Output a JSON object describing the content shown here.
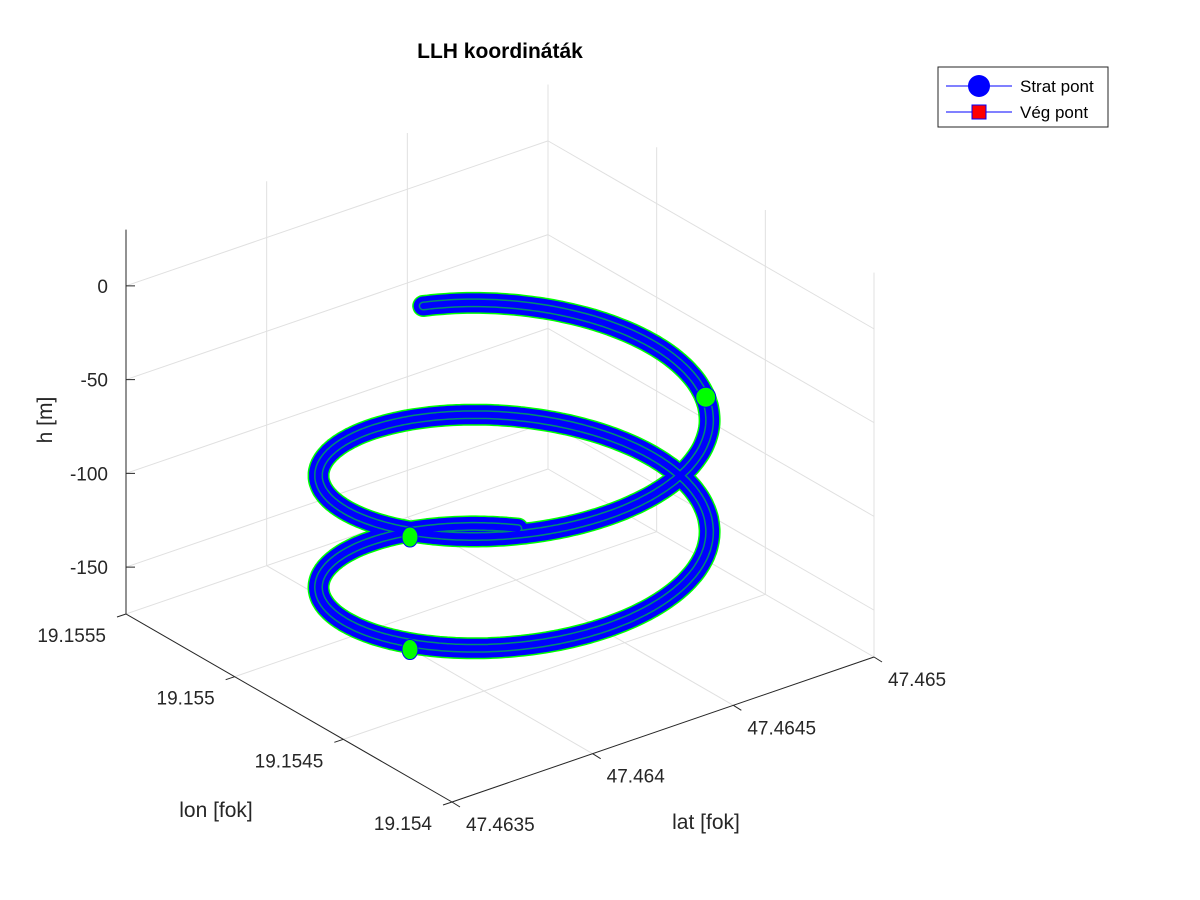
{
  "chart_data": {
    "type": "line",
    "title": "LLH koordináták",
    "xlabel": "lat [fok]",
    "ylabel": "lon [fok]",
    "zlabel": "h [m]",
    "xlim": [
      47.4635,
      47.465
    ],
    "ylim": [
      19.154,
      19.1555
    ],
    "zlim": [
      -175,
      30
    ],
    "x_ticks": [
      "47.4635",
      "47.464",
      "47.4645",
      "47.465"
    ],
    "y_ticks": [
      "19.154",
      "19.1545",
      "19.155",
      "19.1555"
    ],
    "z_ticks": [
      "-150",
      "-100",
      "-50",
      "0"
    ],
    "grid": true,
    "view": "3d",
    "series": [
      {
        "label_key": "helix",
        "kind": "helix",
        "center_lat": 47.4643,
        "center_lon": 19.15475,
        "radius_deg": 0.00055,
        "h_start": -43,
        "h_end": -167,
        "turns": 2.08,
        "start_angle_deg": 80,
        "color_main": "#0000ff",
        "color_edge": "#00ff00"
      }
    ],
    "markers": [
      {
        "lat": 47.46468,
        "lon": 19.15436,
        "h": -44,
        "color": "#00ff00"
      },
      {
        "lat": 47.46393,
        "lon": 19.15475,
        "h": -106,
        "color": "#00ff00"
      },
      {
        "lat": 47.46393,
        "lon": 19.15475,
        "h": -166,
        "color": "#00ff00"
      }
    ],
    "legend": {
      "position": "top-right",
      "entries": [
        {
          "label": "Strat pont",
          "marker": "circle",
          "marker_color": "#0000ff",
          "line_color": "#0000ff"
        },
        {
          "label": "Vég pont",
          "marker": "square",
          "marker_color": "#ff0000",
          "line_color": "#0000ff"
        }
      ]
    }
  }
}
